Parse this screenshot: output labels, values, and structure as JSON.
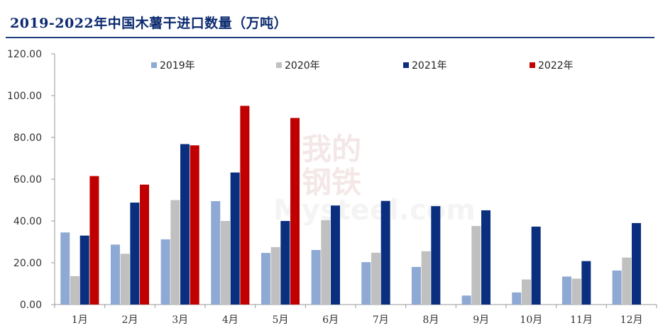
{
  "title": "2019-2022年中国木薯干进口数量（万吨）",
  "watermark": {
    "cn_top": "我的",
    "cn_bottom": "钢铁",
    "en": "Mysteel.com"
  },
  "chart_data": {
    "type": "bar",
    "title": "2019-2022年中国木薯干进口数量（万吨）",
    "xlabel": "",
    "ylabel": "",
    "ylim": [
      0,
      120
    ],
    "yticks": [
      "0.00",
      "20.00",
      "40.00",
      "60.00",
      "80.00",
      "100.00",
      "120.00"
    ],
    "grid": false,
    "legend_position": "top",
    "categories": [
      "1月",
      "2月",
      "3月",
      "4月",
      "5月",
      "6月",
      "7月",
      "8月",
      "9月",
      "10月",
      "11月",
      "12月"
    ],
    "series": [
      {
        "name": "2019年",
        "color": "#8ea9d4",
        "values": [
          34.5,
          28.7,
          31.2,
          49.5,
          24.7,
          26.1,
          20.3,
          18.0,
          4.3,
          5.8,
          13.4,
          16.3
        ]
      },
      {
        "name": "2020年",
        "color": "#c0c0c0",
        "values": [
          13.6,
          24.3,
          50.0,
          40.0,
          27.5,
          40.4,
          24.8,
          25.5,
          37.6,
          12.0,
          12.4,
          22.5
        ]
      },
      {
        "name": "2021年",
        "color": "#0b2f7f",
        "values": [
          33.0,
          48.8,
          76.8,
          63.2,
          40.0,
          47.4,
          49.6,
          47.1,
          45.1,
          37.3,
          20.8,
          39.0
        ]
      },
      {
        "name": "2022年",
        "color": "#c00000",
        "values": [
          61.5,
          57.4,
          76.2,
          95.1,
          89.3,
          null,
          null,
          null,
          null,
          null,
          null,
          null
        ]
      }
    ]
  }
}
